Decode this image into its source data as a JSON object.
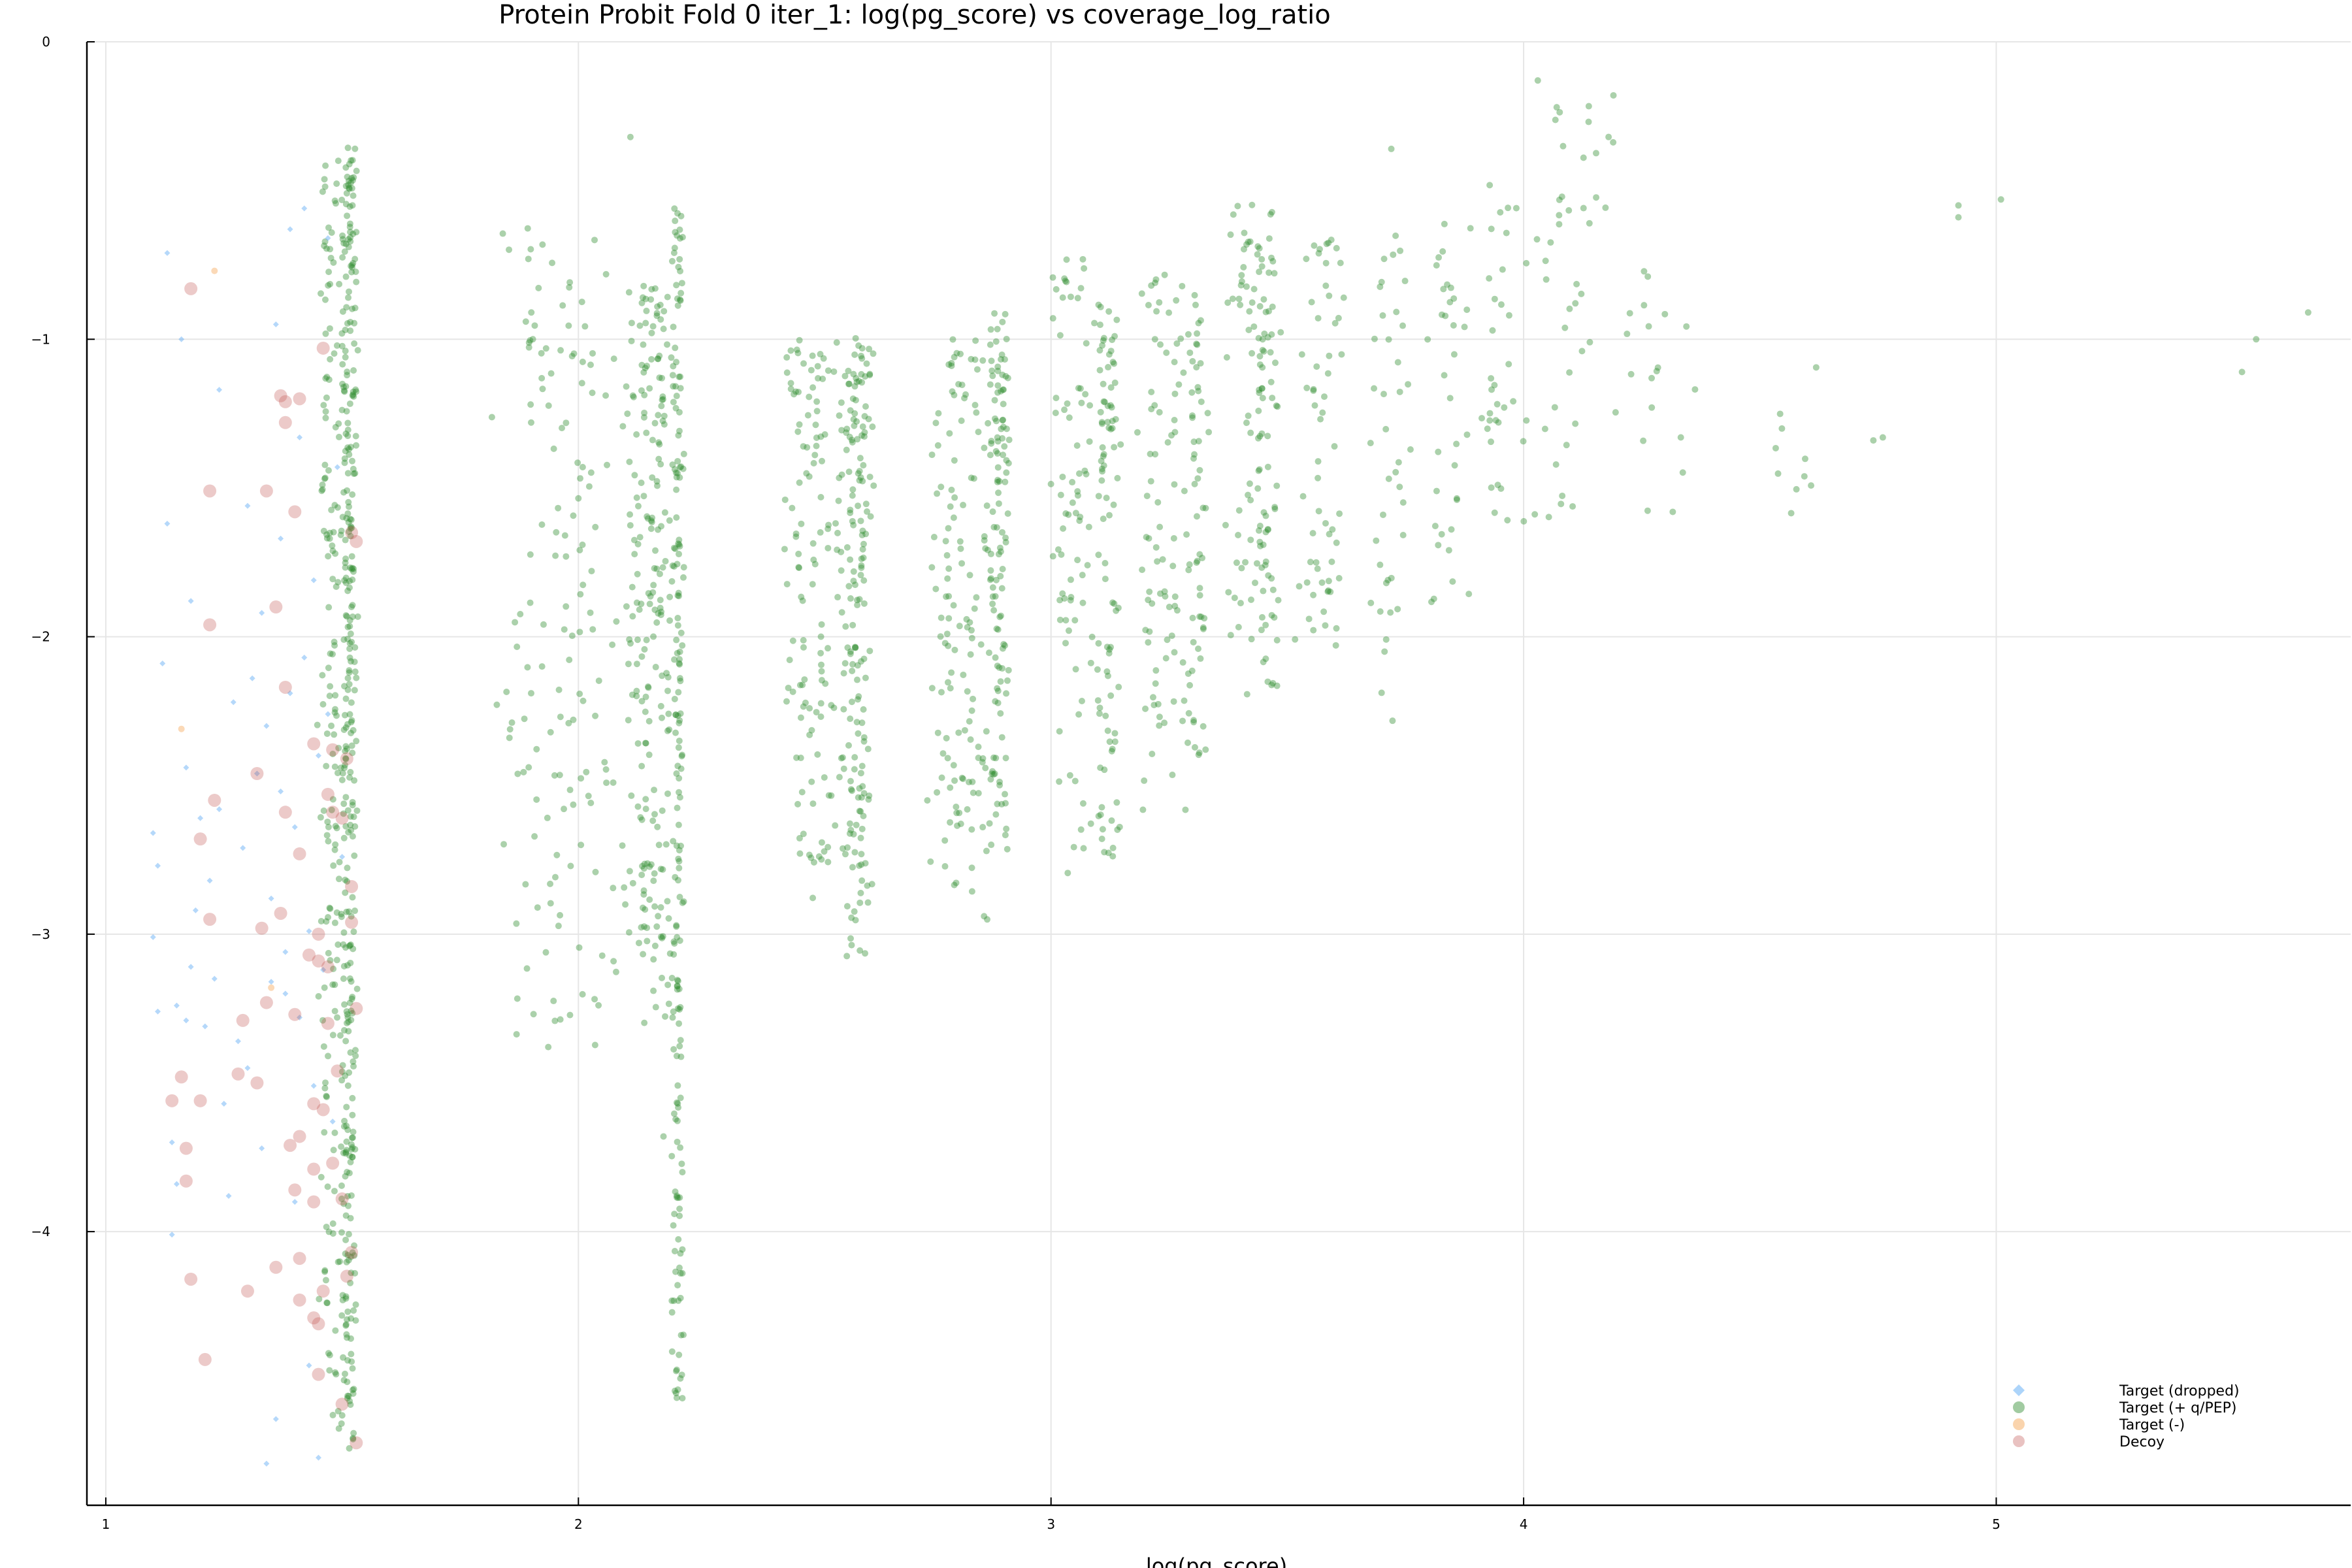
{
  "chart_data": {
    "type": "scatter",
    "title": "Protein Probit Fold 0 iter_1: log(pg_score) vs coverage_log_ratio",
    "xlabel": "log(pg_score)",
    "ylabel": "",
    "xlim": [
      0.96,
      5.75
    ],
    "ylim": [
      -4.92,
      0
    ],
    "xticks": [
      1,
      2,
      3,
      4,
      5
    ],
    "yticks": [
      0,
      -1,
      -2,
      -3,
      -4
    ],
    "grid": true,
    "legend_position": "bottom-right",
    "series": [
      {
        "name": "Target (dropped)",
        "color": "#5aa9f5",
        "marker": "diamond",
        "points": [
          [
            1.1,
            -2.66
          ],
          [
            1.1,
            -3.01
          ],
          [
            1.11,
            -2.77
          ],
          [
            1.11,
            -3.26
          ],
          [
            1.12,
            -2.09
          ],
          [
            1.13,
            -0.71
          ],
          [
            1.13,
            -1.62
          ],
          [
            1.14,
            -3.7
          ],
          [
            1.14,
            -4.01
          ],
          [
            1.15,
            -3.24
          ],
          [
            1.15,
            -3.84
          ],
          [
            1.16,
            -1.0
          ],
          [
            1.17,
            -2.44
          ],
          [
            1.17,
            -3.29
          ],
          [
            1.18,
            -1.88
          ],
          [
            1.18,
            -3.11
          ],
          [
            1.19,
            -2.92
          ],
          [
            1.2,
            -2.61
          ],
          [
            1.21,
            -3.31
          ],
          [
            1.22,
            -2.82
          ],
          [
            1.23,
            -3.15
          ],
          [
            1.24,
            -1.17
          ],
          [
            1.24,
            -2.58
          ],
          [
            1.25,
            -3.57
          ],
          [
            1.26,
            -3.88
          ],
          [
            1.27,
            -2.22
          ],
          [
            1.28,
            -3.36
          ],
          [
            1.29,
            -2.71
          ],
          [
            1.3,
            -1.56
          ],
          [
            1.3,
            -3.45
          ],
          [
            1.31,
            -2.14
          ],
          [
            1.32,
            -2.46
          ],
          [
            1.33,
            -1.92
          ],
          [
            1.33,
            -3.72
          ],
          [
            1.34,
            -2.3
          ],
          [
            1.34,
            -4.78
          ],
          [
            1.35,
            -2.88
          ],
          [
            1.35,
            -3.16
          ],
          [
            1.36,
            -4.63
          ],
          [
            1.36,
            -0.95
          ],
          [
            1.37,
            -2.52
          ],
          [
            1.37,
            -1.67
          ],
          [
            1.38,
            -3.06
          ],
          [
            1.38,
            -3.2
          ],
          [
            1.39,
            -0.63
          ],
          [
            1.39,
            -2.19
          ],
          [
            1.4,
            -3.9
          ],
          [
            1.4,
            -2.64
          ],
          [
            1.41,
            -1.33
          ],
          [
            1.41,
            -3.28
          ],
          [
            1.42,
            -0.56
          ],
          [
            1.42,
            -2.07
          ],
          [
            1.43,
            -4.45
          ],
          [
            1.43,
            -2.99
          ],
          [
            1.44,
            -3.51
          ],
          [
            1.44,
            -1.81
          ],
          [
            1.45,
            -2.4
          ],
          [
            1.45,
            -4.76
          ],
          [
            1.46,
            -3.12
          ],
          [
            1.47,
            -2.26
          ],
          [
            1.47,
            -0.66
          ],
          [
            1.48,
            -3.63
          ],
          [
            1.49,
            -1.43
          ],
          [
            1.5,
            -2.74
          ]
        ]
      },
      {
        "name": "Target (+ q/PEP)",
        "color": "#2e8b2e",
        "marker": "circle",
        "generators": [
          {
            "x": 1.475,
            "w": 0.03,
            "ymin": -4.78,
            "ymax": -0.39,
            "n": 160
          },
          {
            "x": 1.515,
            "w": 0.02,
            "ymin": -4.75,
            "ymax": -0.34,
            "n": 340
          },
          {
            "x": 1.96,
            "w": 0.16,
            "ymin": -3.4,
            "ymax": -0.62,
            "n": 150
          },
          {
            "x": 2.15,
            "w": 0.06,
            "ymin": -3.3,
            "ymax": -0.82,
            "n": 210
          },
          {
            "x": 2.21,
            "w": 0.015,
            "ymin": -4.59,
            "ymax": -0.56,
            "n": 180
          },
          {
            "x": 2.5,
            "w": 0.08,
            "ymin": -2.9,
            "ymax": -1.0,
            "n": 130
          },
          {
            "x": 2.59,
            "w": 0.04,
            "ymin": -3.08,
            "ymax": -0.98,
            "n": 170
          },
          {
            "x": 2.81,
            "w": 0.08,
            "ymin": -2.97,
            "ymax": -1.0,
            "n": 130
          },
          {
            "x": 2.89,
            "w": 0.03,
            "ymin": -2.74,
            "ymax": -0.91,
            "n": 120
          },
          {
            "x": 3.05,
            "w": 0.06,
            "ymin": -2.81,
            "ymax": -0.73,
            "n": 80
          },
          {
            "x": 3.12,
            "w": 0.03,
            "ymin": -2.76,
            "ymax": -0.88,
            "n": 90
          },
          {
            "x": 3.24,
            "w": 0.06,
            "ymin": -2.6,
            "ymax": -0.78,
            "n": 80
          },
          {
            "x": 3.31,
            "w": 0.03,
            "ymin": -2.41,
            "ymax": -0.84,
            "n": 60
          },
          {
            "x": 3.42,
            "w": 0.06,
            "ymin": -2.21,
            "ymax": -0.53,
            "n": 70
          },
          {
            "x": 3.46,
            "w": 0.03,
            "ymin": -2.19,
            "ymax": -0.69,
            "n": 60
          },
          {
            "x": 3.57,
            "w": 0.06,
            "ymin": -2.08,
            "ymax": -0.66,
            "n": 60
          },
          {
            "x": 3.72,
            "w": 0.05,
            "ymin": -2.33,
            "ymax": -0.64,
            "n": 40
          },
          {
            "x": 3.84,
            "w": 0.06,
            "ymin": -1.94,
            "ymax": -0.6,
            "n": 35
          },
          {
            "x": 3.96,
            "w": 0.07,
            "ymin": -1.75,
            "ymax": -0.47,
            "n": 35
          },
          {
            "x": 4.1,
            "w": 0.1,
            "ymin": -1.62,
            "ymax": -0.14,
            "n": 40
          },
          {
            "x": 4.3,
            "w": 0.12,
            "ymin": -1.64,
            "ymax": -0.71,
            "n": 20
          },
          {
            "x": 4.58,
            "w": 0.1,
            "ymin": -1.63,
            "ymax": -1.02,
            "n": 10
          }
        ],
        "points": [
          [
            1.9,
            -1.28
          ],
          [
            1.9,
            -2.19
          ],
          [
            4.03,
            -0.13
          ],
          [
            4.07,
            -0.22
          ],
          [
            4.19,
            -0.18
          ],
          [
            3.72,
            -0.36
          ],
          [
            2.11,
            -0.32
          ],
          [
            4.74,
            -1.34
          ],
          [
            4.76,
            -1.33
          ],
          [
            4.92,
            -0.55
          ],
          [
            4.92,
            -0.59
          ],
          [
            5.01,
            -0.53
          ],
          [
            5.52,
            -1.11
          ],
          [
            5.55,
            -1.0
          ],
          [
            5.66,
            -0.91
          ],
          [
            2.18,
            -3.68
          ],
          [
            2.22,
            -3.8
          ],
          [
            2.22,
            -4.06
          ],
          [
            2.22,
            -4.14
          ],
          [
            2.22,
            -4.56
          ]
        ]
      },
      {
        "name": "Target (-)",
        "color": "#f5a04a",
        "marker": "circle",
        "points": [
          [
            1.23,
            -0.77
          ],
          [
            1.16,
            -2.31
          ],
          [
            1.35,
            -3.18
          ]
        ]
      },
      {
        "name": "Decoy",
        "color": "#c0504d",
        "marker": "circle",
        "points": [
          [
            1.18,
            -0.83
          ],
          [
            1.46,
            -1.03
          ],
          [
            1.37,
            -1.19
          ],
          [
            1.38,
            -1.21
          ],
          [
            1.41,
            -1.2
          ],
          [
            1.38,
            -1.28
          ],
          [
            1.22,
            -1.51
          ],
          [
            1.34,
            -1.51
          ],
          [
            1.4,
            -1.58
          ],
          [
            1.22,
            -1.96
          ],
          [
            1.36,
            -1.9
          ],
          [
            1.38,
            -2.17
          ],
          [
            1.44,
            -2.36
          ],
          [
            1.48,
            -2.38
          ],
          [
            1.51,
            -2.41
          ],
          [
            1.32,
            -2.46
          ],
          [
            1.47,
            -2.53
          ],
          [
            1.23,
            -2.55
          ],
          [
            1.38,
            -2.59
          ],
          [
            1.48,
            -2.59
          ],
          [
            1.5,
            -2.61
          ],
          [
            1.2,
            -2.68
          ],
          [
            1.41,
            -2.73
          ],
          [
            1.22,
            -2.95
          ],
          [
            1.37,
            -2.93
          ],
          [
            1.33,
            -2.98
          ],
          [
            1.45,
            -3.0
          ],
          [
            1.52,
            -2.96
          ],
          [
            1.43,
            -3.07
          ],
          [
            1.45,
            -3.09
          ],
          [
            1.47,
            -3.11
          ],
          [
            1.34,
            -3.23
          ],
          [
            1.4,
            -3.27
          ],
          [
            1.29,
            -3.29
          ],
          [
            1.47,
            -3.3
          ],
          [
            1.28,
            -3.47
          ],
          [
            1.32,
            -3.5
          ],
          [
            1.49,
            -3.46
          ],
          [
            1.16,
            -3.48
          ],
          [
            1.14,
            -3.56
          ],
          [
            1.2,
            -3.56
          ],
          [
            1.44,
            -3.57
          ],
          [
            1.46,
            -3.59
          ],
          [
            1.41,
            -3.68
          ],
          [
            1.39,
            -3.71
          ],
          [
            1.17,
            -3.72
          ],
          [
            1.44,
            -3.79
          ],
          [
            1.48,
            -3.77
          ],
          [
            1.17,
            -3.83
          ],
          [
            1.4,
            -3.86
          ],
          [
            1.44,
            -3.9
          ],
          [
            1.5,
            -3.89
          ],
          [
            1.52,
            -4.07
          ],
          [
            1.41,
            -4.09
          ],
          [
            1.36,
            -4.12
          ],
          [
            1.18,
            -4.16
          ],
          [
            1.51,
            -4.15
          ],
          [
            1.3,
            -4.2
          ],
          [
            1.46,
            -4.2
          ],
          [
            1.41,
            -4.23
          ],
          [
            1.44,
            -4.29
          ],
          [
            1.45,
            -4.31
          ],
          [
            1.21,
            -4.43
          ],
          [
            1.45,
            -4.48
          ],
          [
            1.5,
            -4.58
          ],
          [
            1.53,
            -4.71
          ],
          [
            1.52,
            -1.65
          ],
          [
            1.53,
            -1.68
          ],
          [
            1.52,
            -2.84
          ],
          [
            1.53,
            -3.25
          ]
        ]
      }
    ]
  }
}
